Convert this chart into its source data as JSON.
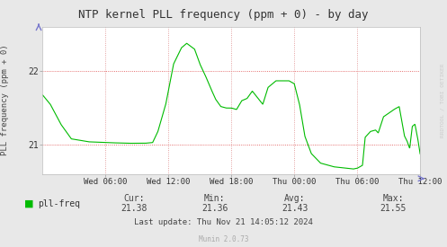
{
  "title": "NTP kernel PLL frequency (ppm + 0) - by day",
  "ylabel": "PLL frequency (ppm + 0)",
  "bg_color": "#e8e8e8",
  "plot_bg_color": "#ffffff",
  "line_color": "#00bb00",
  "grid_color_h": "#dd4444",
  "grid_color_v": "#dd8888",
  "x_tick_labels": [
    "Wed 06:00",
    "Wed 12:00",
    "Wed 18:00",
    "Thu 00:00",
    "Thu 06:00",
    "Thu 12:00"
  ],
  "y_tick_labels": [
    "21",
    "22"
  ],
  "ylim": [
    20.6,
    22.6
  ],
  "xlim": [
    0,
    288
  ],
  "cur": "21.38",
  "min": "21.36",
  "avg": "21.43",
  "max": "21.55",
  "legend_label": "pll-freq",
  "legend_color": "#00bb00",
  "last_update": "Last update: Thu Nov 21 14:05:12 2024",
  "munin_version": "Munin 2.0.73",
  "watermark": "RRDTOOL / TOBI OETIKER",
  "x_ticks_pos": [
    48,
    96,
    144,
    192,
    240,
    288
  ],
  "y_ticks_pos": [
    21,
    22
  ]
}
